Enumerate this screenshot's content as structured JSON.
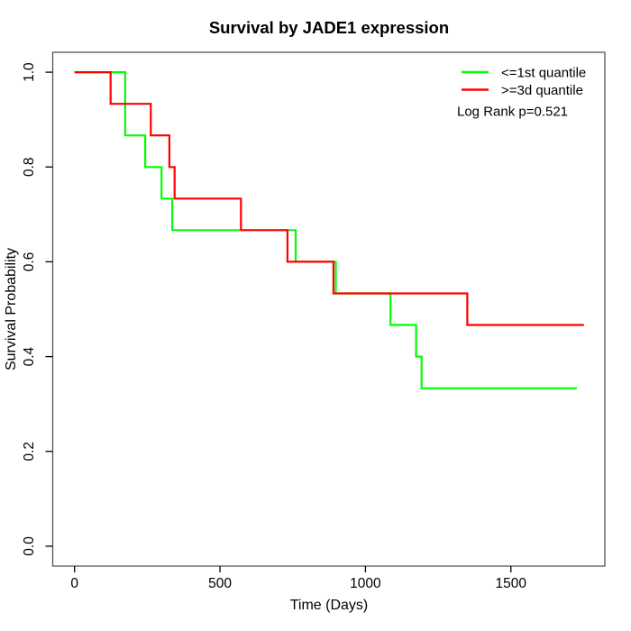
{
  "chart_data": {
    "type": "line",
    "subtype": "kaplan-meier-step",
    "title": "Survival by JADE1 expression",
    "xlabel": "Time (Days)",
    "ylabel": "Survival Probability",
    "x_ticks": [
      0,
      500,
      1000,
      1500
    ],
    "y_ticks": [
      "0.0",
      "0.2",
      "0.4",
      "0.6",
      "0.8",
      "1.0"
    ],
    "xlim": [
      -75,
      1823
    ],
    "ylim": [
      -0.042,
      1.042
    ],
    "grid": false,
    "legend_position": "top-right",
    "annotation": "Log Rank p=0.521",
    "frame_color": "#555555",
    "background_color": "#ffffff",
    "series": [
      {
        "name": "<=1st quantile",
        "color": "#00FF00",
        "points": [
          [
            0,
            1
          ],
          [
            174,
            1
          ],
          [
            174,
            0.8667
          ],
          [
            243,
            0.8667
          ],
          [
            243,
            0.8
          ],
          [
            299,
            0.8
          ],
          [
            299,
            0.7333
          ],
          [
            336,
            0.7333
          ],
          [
            336,
            0.6667
          ],
          [
            760,
            0.6667
          ],
          [
            760,
            0.6
          ],
          [
            898,
            0.6
          ],
          [
            898,
            0.5333
          ],
          [
            1086,
            0.5333
          ],
          [
            1086,
            0.4667
          ],
          [
            1174,
            0.4667
          ],
          [
            1174,
            0.4
          ],
          [
            1193,
            0.4
          ],
          [
            1193,
            0.3333
          ],
          [
            1727,
            0.3333
          ]
        ]
      },
      {
        "name": ">=3d quantile",
        "color": "#FF0000",
        "points": [
          [
            0,
            1
          ],
          [
            124,
            1
          ],
          [
            124,
            0.9333
          ],
          [
            262,
            0.9333
          ],
          [
            262,
            0.8667
          ],
          [
            326,
            0.8667
          ],
          [
            326,
            0.8
          ],
          [
            344,
            0.8
          ],
          [
            344,
            0.7333
          ],
          [
            572,
            0.7333
          ],
          [
            572,
            0.6667
          ],
          [
            732,
            0.6667
          ],
          [
            732,
            0.6
          ],
          [
            890,
            0.6
          ],
          [
            890,
            0.5333
          ],
          [
            1350,
            0.5333
          ],
          [
            1350,
            0.4667
          ],
          [
            1751,
            0.4667
          ]
        ]
      }
    ]
  }
}
